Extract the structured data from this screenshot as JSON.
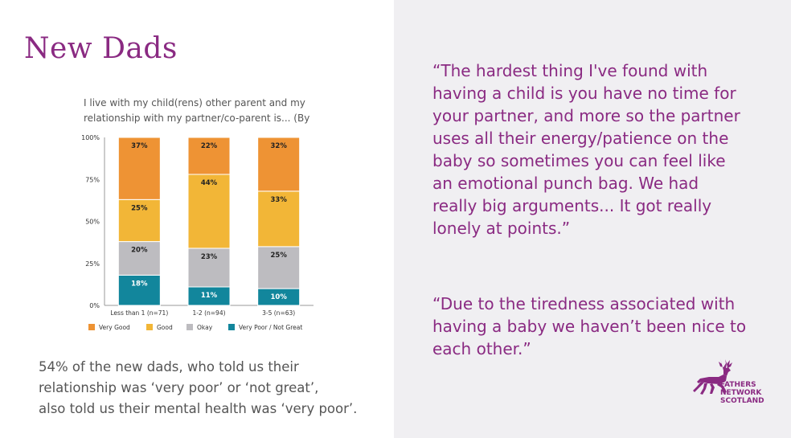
{
  "slide": {
    "title": "New Dads",
    "summary_lines": [
      "54% of the new dads, who told us their",
      "relationship was ‘very poor’ or ‘not great’,",
      "also told us their mental health was ‘very poor’."
    ],
    "quote1_lines": [
      "“The hardest thing I've found with",
      "having a child is you have no time for",
      "your partner, and more so the partner",
      "uses all their energy/patience on the",
      "baby so sometimes you can feel like",
      "an emotional punch bag. We had",
      "really big arguments... It got really",
      "lonely at points.”"
    ],
    "quote2_lines": [
      "“Due to the tiredness associated with",
      "having a baby we haven’t been nice to",
      "each other.”"
    ],
    "logo": {
      "icon": "stag-icon",
      "lines": [
        "FATHERS",
        "NETWORK",
        "SCOTLAND"
      ]
    },
    "colors": {
      "accent": "#8a2a82",
      "panel": "#f0eff2"
    }
  },
  "chart_data": {
    "type": "bar",
    "stacked": true,
    "title_lines": [
      "I live with my child(rens) other parent and my",
      "relationship with my partner/co-parent is... (By"
    ],
    "categories": [
      "Less than 1 (n=71)",
      "1-2 (n=94)",
      "3-5 (n=63)"
    ],
    "series": [
      {
        "name": "Very Poor / Not Great",
        "color": "#12869c",
        "label_color": "#ffffff",
        "values": [
          18,
          11,
          10
        ]
      },
      {
        "name": "Okay",
        "color": "#bdbcc0",
        "label_color": "#222222",
        "values": [
          20,
          23,
          25
        ]
      },
      {
        "name": "Good",
        "color": "#f2b637",
        "label_color": "#222222",
        "values": [
          25,
          44,
          33
        ]
      },
      {
        "name": "Very Good",
        "color": "#ee9334",
        "label_color": "#222222",
        "values": [
          37,
          22,
          32
        ]
      }
    ],
    "legend_order": [
      "Very Good",
      "Good",
      "Okay",
      "Very Poor / Not Great"
    ],
    "y_ticks": [
      "0%",
      "25%",
      "50%",
      "75%",
      "100%"
    ],
    "ylim": [
      0,
      100
    ],
    "legend_position": "bottom",
    "grid": false
  }
}
